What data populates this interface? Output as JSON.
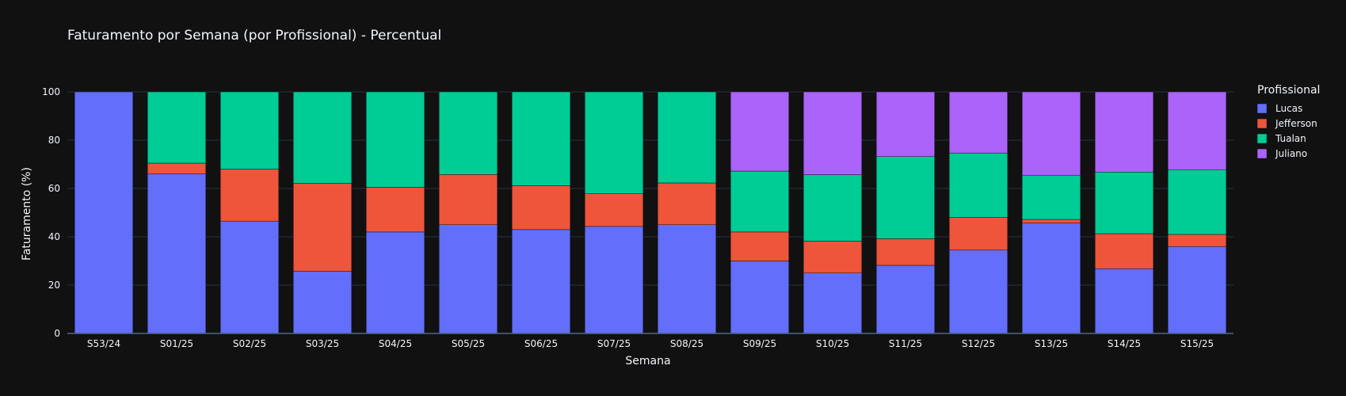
{
  "chart_data": {
    "type": "bar",
    "stacked": true,
    "title": "Faturamento por Semana (por Profissional) - Percentual",
    "xlabel": "Semana",
    "ylabel": "Faturamento (%)",
    "ylim": [
      0,
      100
    ],
    "yticks": [
      0,
      20,
      40,
      60,
      80,
      100
    ],
    "grid": true,
    "legend_title": "Profissional",
    "legend_position": "top-right",
    "categories": [
      "S53/24",
      "S01/25",
      "S02/25",
      "S03/25",
      "S04/25",
      "S05/25",
      "S06/25",
      "S07/25",
      "S08/25",
      "S09/25",
      "S10/25",
      "S11/25",
      "S12/25",
      "S13/25",
      "S14/25",
      "S15/25"
    ],
    "series": [
      {
        "name": "Lucas",
        "color": "#636efa",
        "values": [
          100,
          66,
          46.5,
          25.8,
          42,
          45,
          43,
          44.3,
          45,
          30,
          25,
          28.2,
          34.5,
          45.7,
          26.8,
          36
        ]
      },
      {
        "name": "Jefferson",
        "color": "#ef553b",
        "values": [
          0,
          4.5,
          21.5,
          36.4,
          18.5,
          20.8,
          18.2,
          13.5,
          17.3,
          12,
          13.2,
          11,
          13.5,
          1.5,
          14.5,
          5
        ]
      },
      {
        "name": "Tualan",
        "color": "#00cc96",
        "values": [
          0,
          29.5,
          32,
          37.8,
          39.5,
          34.2,
          38.8,
          42.2,
          37.7,
          25.2,
          27.5,
          34,
          26.7,
          18.3,
          25.5,
          26.8
        ]
      },
      {
        "name": "Juliano",
        "color": "#ab63fa",
        "values": [
          0,
          0,
          0,
          0,
          0,
          0,
          0,
          0,
          0,
          32.8,
          34.3,
          26.8,
          25.3,
          34.5,
          33.2,
          32.2
        ]
      }
    ]
  },
  "theme": {
    "background": "#111111",
    "grid_color": "#283442",
    "zero_line_color": "#506784",
    "bar_outline": "#111111"
  }
}
